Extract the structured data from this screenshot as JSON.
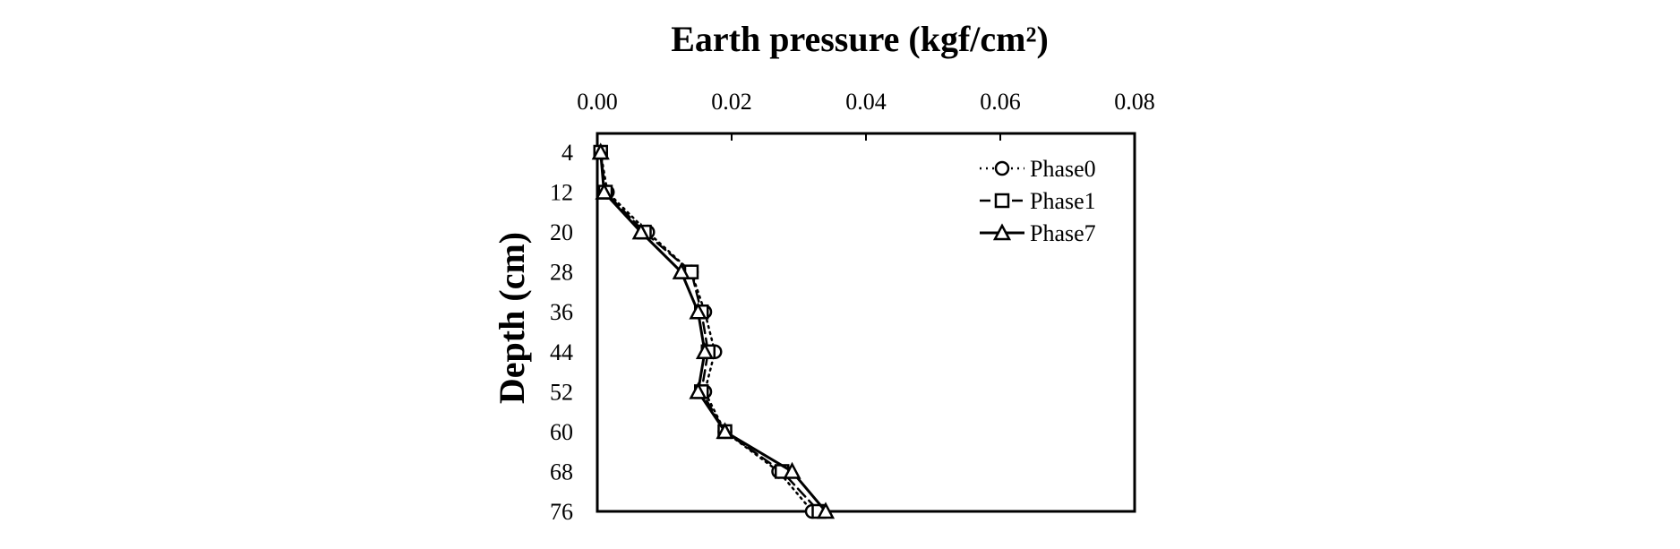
{
  "chart_data": {
    "type": "line",
    "title": "Earth pressure (kgf/cm²)",
    "xlabel": "Earth pressure (kgf/cm²)",
    "ylabel": "Depth (cm)",
    "xlim": [
      0,
      0.08
    ],
    "ylim": [
      4,
      76
    ],
    "y_reversed": true,
    "x_axis_position": "top",
    "x_ticks": [
      "0.00",
      "0.02",
      "0.04",
      "0.06",
      "0.08"
    ],
    "y_ticks": [
      "4",
      "12",
      "20",
      "28",
      "36",
      "44",
      "52",
      "60",
      "68",
      "76"
    ],
    "grid": false,
    "legend_position": "top-right",
    "depth": [
      4,
      12,
      20,
      28,
      36,
      44,
      52,
      60,
      68,
      76
    ],
    "series": [
      {
        "name": "Phase0",
        "marker": "circle",
        "line": "dotted",
        "values": [
          0.0005,
          0.0015,
          0.0075,
          0.014,
          0.016,
          0.0175,
          0.016,
          0.019,
          0.027,
          0.032
        ]
      },
      {
        "name": "Phase1",
        "marker": "square",
        "line": "dashed",
        "values": [
          0.0005,
          0.0012,
          0.007,
          0.014,
          0.0155,
          0.0165,
          0.0155,
          0.019,
          0.0275,
          0.033
        ]
      },
      {
        "name": "Phase7",
        "marker": "triangle",
        "line": "solid",
        "values": [
          0.0005,
          0.001,
          0.0065,
          0.0125,
          0.015,
          0.016,
          0.015,
          0.019,
          0.029,
          0.034
        ]
      }
    ]
  }
}
